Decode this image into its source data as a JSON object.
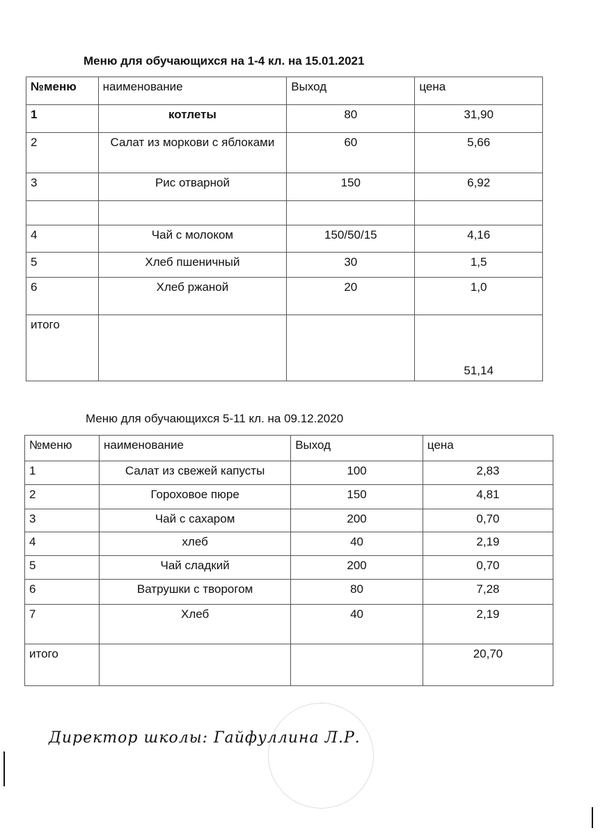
{
  "menu1": {
    "title": "Меню  для  обучающихся  на 1-4 кл.  на 15.01.2021",
    "headers": [
      "№меню",
      "наименование",
      "Выход",
      "цена"
    ],
    "rows": [
      [
        "1",
        "котлеты",
        "80",
        "31,90"
      ],
      [
        "2",
        "Салат из моркови с яблоками",
        "60",
        "5,66"
      ],
      [
        "3",
        "Рис отварной",
        "150",
        "6,92"
      ],
      [
        "",
        "",
        "",
        ""
      ],
      [
        "4",
        "Чай с молоком",
        "150/50/15",
        "4,16"
      ],
      [
        "5",
        "Хлеб пшеничный",
        "30",
        "1,5"
      ],
      [
        "6",
        "Хлеб ржаной",
        "20",
        "1,0"
      ]
    ],
    "total_label": "итого",
    "total": "51,14"
  },
  "menu2": {
    "title": "Меню для обучающихся 5-11 кл. на 09.12.2020",
    "headers": [
      "№меню",
      "наименование",
      "Выход",
      "цена"
    ],
    "rows": [
      [
        "1",
        "Салат из свежей капусты",
        "100",
        "2,83"
      ],
      [
        "2",
        "Гороховое пюре",
        "150",
        "4,81"
      ],
      [
        "3",
        "Чай с сахаром",
        "200",
        "0,70"
      ],
      [
        "4",
        "хлеб",
        "40",
        "2,19"
      ],
      [
        "5",
        "Чай сладкий",
        "200",
        "0,70"
      ],
      [
        "6",
        "Ватрушки с творогом",
        "80",
        "7,28"
      ],
      [
        "7",
        "Хлеб",
        "40",
        "2,19"
      ]
    ],
    "total_label": "итого",
    "total": "20,70"
  },
  "signature": "Директор школы: Гайфуллина Л.Р."
}
